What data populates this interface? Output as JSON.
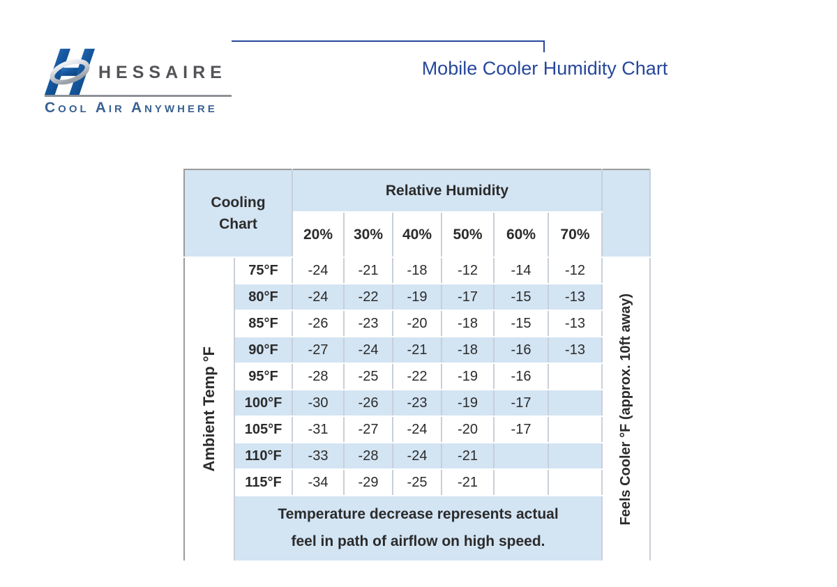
{
  "brand": {
    "name": "HESSAIRE",
    "tagline": "Cool Air Anywhere",
    "logo_icon": "hessaire-h-ribbon-icon"
  },
  "title": "Mobile Cooler Humidity Chart",
  "colors": {
    "title_blue": "#26479B",
    "tagline_blue": "#3A6191",
    "brand_gray": "#515356",
    "divider_gray": "#8E9298",
    "table_blue": "#D3E4F3",
    "border_gray": "#9B9B9B",
    "grid_line": "#C9CFD8",
    "text_dark": "#2B2B2B",
    "value_gray": "#3E3E3E",
    "logo_blue_light": "#3A7CC4",
    "logo_blue_dark": "#0B3E74"
  },
  "table": {
    "corner_line1": "Cooling",
    "corner_line2": "Chart",
    "humidity_header": "Relative Humidity",
    "humidity_columns": [
      "20%",
      "30%",
      "40%",
      "50%",
      "60%",
      "70%"
    ],
    "row_axis_label": "Ambient Temp °F",
    "col_axis_label": "Feels Cooler °F (approx. 10ft away)",
    "rows": [
      {
        "temp": "75°F",
        "values": [
          "-24",
          "-21",
          "-18",
          "-12",
          "-14",
          "-12"
        ]
      },
      {
        "temp": "80°F",
        "values": [
          "-24",
          "-22",
          "-19",
          "-17",
          "-15",
          "-13"
        ]
      },
      {
        "temp": "85°F",
        "values": [
          "-26",
          "-23",
          "-20",
          "-18",
          "-15",
          "-13"
        ]
      },
      {
        "temp": "90°F",
        "values": [
          "-27",
          "-24",
          "-21",
          "-18",
          "-16",
          "-13"
        ]
      },
      {
        "temp": "95°F",
        "values": [
          "-28",
          "-25",
          "-22",
          "-19",
          "-16",
          ""
        ]
      },
      {
        "temp": "100°F",
        "values": [
          "-30",
          "-26",
          "-23",
          "-19",
          "-17",
          ""
        ]
      },
      {
        "temp": "105°F",
        "values": [
          "-31",
          "-27",
          "-24",
          "-20",
          "-17",
          ""
        ]
      },
      {
        "temp": "110°F",
        "values": [
          "-33",
          "-28",
          "-24",
          "-21",
          "",
          ""
        ]
      },
      {
        "temp": "115°F",
        "values": [
          "-34",
          "-29",
          "-25",
          "-21",
          "",
          ""
        ]
      }
    ],
    "footnote_line1": "Temperature decrease represents actual",
    "footnote_line2": "feel in path of airflow on high speed."
  },
  "chart_data": {
    "type": "table",
    "title": "Mobile Cooler Humidity Chart",
    "column_group_label": "Relative Humidity",
    "columns_relative_humidity": [
      "20%",
      "30%",
      "40%",
      "50%",
      "60%",
      "70%"
    ],
    "row_axis_label": "Ambient Temp °F",
    "rows_ambient_temp_f": [
      75,
      80,
      85,
      90,
      95,
      100,
      105,
      110,
      115
    ],
    "value_axis_label": "Feels Cooler °F (approx. 10ft away)",
    "matrix_feels_cooler_f": [
      [
        -24,
        -21,
        -18,
        -12,
        -14,
        -12
      ],
      [
        -24,
        -22,
        -19,
        -17,
        -15,
        -13
      ],
      [
        -26,
        -23,
        -20,
        -18,
        -15,
        -13
      ],
      [
        -27,
        -24,
        -21,
        -18,
        -16,
        -13
      ],
      [
        -28,
        -25,
        -22,
        -19,
        -16,
        null
      ],
      [
        -30,
        -26,
        -23,
        -19,
        -17,
        null
      ],
      [
        -31,
        -27,
        -24,
        -20,
        -17,
        null
      ],
      [
        -33,
        -28,
        -24,
        -21,
        null,
        null
      ],
      [
        -34,
        -29,
        -25,
        -21,
        null,
        null
      ]
    ],
    "note": "Temperature decrease represents actual feel in path of airflow on high speed."
  }
}
